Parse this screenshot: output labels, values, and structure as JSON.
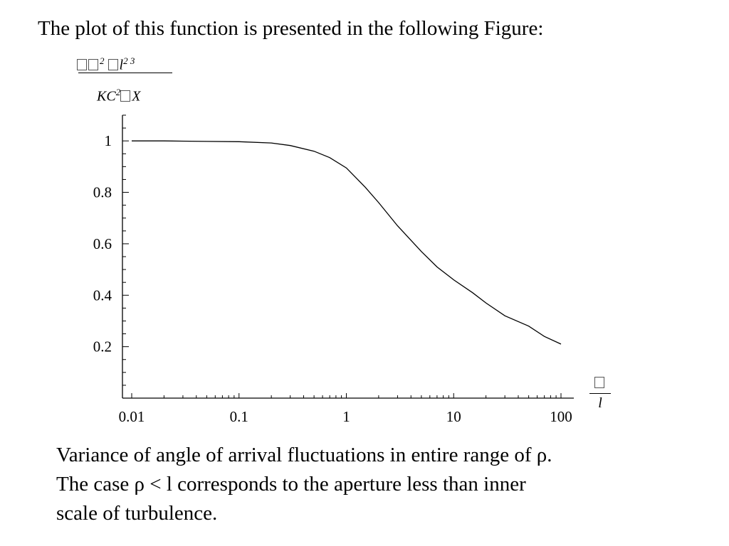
{
  "slide": {
    "heading": "The plot of this function is presented in the following Figure:",
    "caption_lines": [
      "Variance of angle of arrival fluctuations in entire range of ρ.",
      "The case ρ < l corresponds to the aperture less than inner",
      "scale of turbulence."
    ]
  },
  "chart_data": {
    "type": "line",
    "title": "",
    "xlabel_numerator": "ρ",
    "xlabel_denominator": "l",
    "ylabel_numerator": "⟨α²⟩ l^(2/3)",
    "ylabel_denominator": "KC² X",
    "x_scale": "log",
    "xlim": [
      0.01,
      100
    ],
    "ylim": [
      0,
      1.1
    ],
    "x_ticks": [
      0.01,
      0.1,
      1,
      10,
      100
    ],
    "x_tick_labels": [
      "0.01",
      "0.1",
      "1",
      "10",
      "100"
    ],
    "y_ticks": [
      0.2,
      0.4,
      0.6,
      0.8,
      1
    ],
    "y_tick_labels": [
      "0.2",
      "0.4",
      "0.6",
      "0.8",
      "1"
    ],
    "grid": false,
    "series": [
      {
        "x": [
          0.01,
          0.02,
          0.05,
          0.1,
          0.2,
          0.3,
          0.5,
          0.7,
          1,
          1.5,
          2,
          3,
          5,
          7,
          10,
          15,
          20,
          30,
          50,
          70,
          100
        ],
        "y": [
          1.0,
          1.0,
          0.998,
          0.997,
          0.992,
          0.982,
          0.96,
          0.935,
          0.895,
          0.82,
          0.76,
          0.67,
          0.57,
          0.51,
          0.46,
          0.41,
          0.37,
          0.32,
          0.28,
          0.24,
          0.21
        ]
      }
    ],
    "colors": {
      "line": "#000000",
      "axis": "#000000"
    }
  }
}
